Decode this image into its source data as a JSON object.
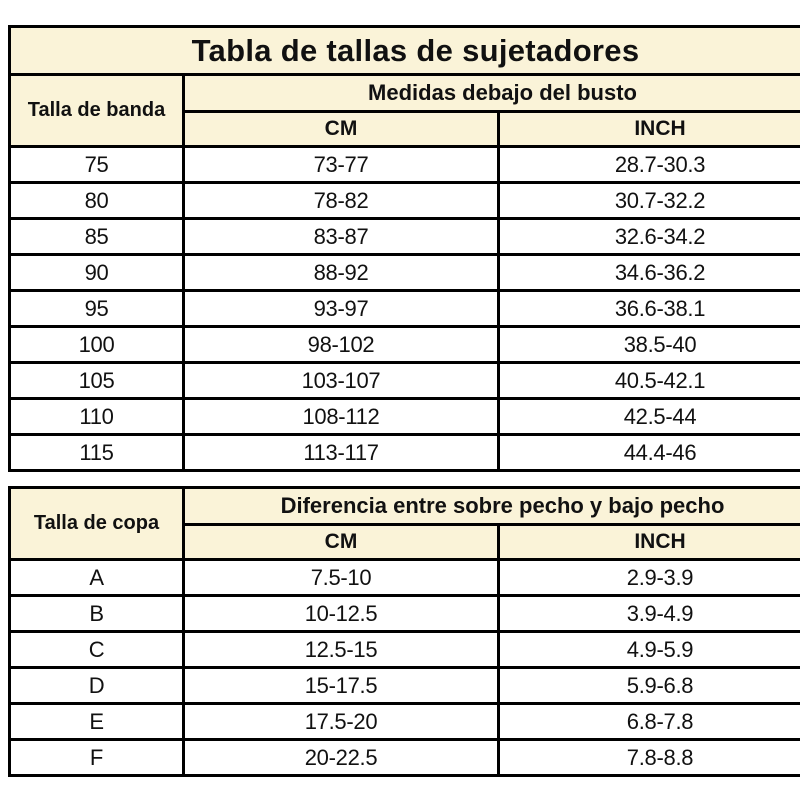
{
  "colors": {
    "header_bg": "#FAF3D8",
    "border": "#000000",
    "text": "#111111",
    "page_bg": "#ffffff"
  },
  "chart_data": [
    {
      "type": "table",
      "title": "Tabla de tallas de sujetadores",
      "corner_label": "Talla de banda",
      "group_header": "Medidas debajo del busto",
      "columns": [
        "CM",
        "INCH"
      ],
      "rows": [
        [
          "75",
          "73-77",
          "28.7-30.3"
        ],
        [
          "80",
          "78-82",
          "30.7-32.2"
        ],
        [
          "85",
          "83-87",
          "32.6-34.2"
        ],
        [
          "90",
          "88-92",
          "34.6-36.2"
        ],
        [
          "95",
          "93-97",
          "36.6-38.1"
        ],
        [
          "100",
          "98-102",
          "38.5-40"
        ],
        [
          "105",
          "103-107",
          "40.5-42.1"
        ],
        [
          "110",
          "108-112",
          "42.5-44"
        ],
        [
          "115",
          "113-117",
          "44.4-46"
        ]
      ]
    },
    {
      "type": "table",
      "corner_label": "Talla de copa",
      "group_header": "Diferencia entre sobre pecho y bajo pecho",
      "columns": [
        "CM",
        "INCH"
      ],
      "rows": [
        [
          "A",
          "7.5-10",
          "2.9-3.9"
        ],
        [
          "B",
          "10-12.5",
          "3.9-4.9"
        ],
        [
          "C",
          "12.5-15",
          "4.9-5.9"
        ],
        [
          "D",
          "15-17.5",
          "5.9-6.8"
        ],
        [
          "E",
          "17.5-20",
          "6.8-7.8"
        ],
        [
          "F",
          "20-22.5",
          "7.8-8.8"
        ]
      ]
    }
  ]
}
